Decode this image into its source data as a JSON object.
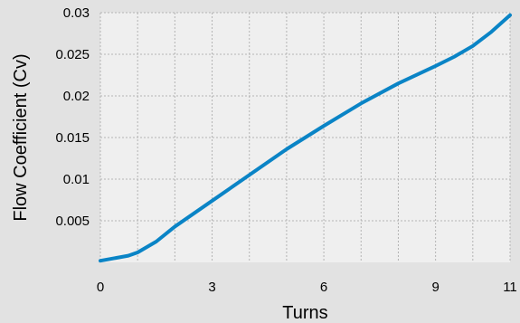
{
  "chart_data": {
    "type": "line",
    "title": "",
    "xlabel": "Turns",
    "ylabel": "Flow Coefficient (Cv)",
    "xlim": [
      0,
      11
    ],
    "ylim": [
      0,
      0.03
    ],
    "xticks": [
      0,
      3,
      6,
      9,
      11
    ],
    "xtick_labels": [
      "0",
      "3",
      "6",
      "9",
      "11"
    ],
    "yticks": [
      0.005,
      0.01,
      0.015,
      0.02,
      0.025,
      0.03
    ],
    "ytick_labels": [
      "0.005",
      "0.01",
      "0.015",
      "0.02",
      "0.025",
      "0.03"
    ],
    "grid": true,
    "legend": "none",
    "colors": {
      "line": "#0a84c6",
      "plot_background": "#efefef",
      "page_background": "#e2e2e2",
      "grid": "#b4b4b4"
    },
    "series": [
      {
        "x": [
          0,
          0.5,
          0.75,
          1,
          1.5,
          2,
          3,
          4,
          5,
          6,
          7,
          8,
          9,
          9.5,
          10,
          10.5,
          11
        ],
        "y": [
          0.0002,
          0.0006,
          0.0008,
          0.0012,
          0.0025,
          0.0043,
          0.0074,
          0.0105,
          0.0136,
          0.0164,
          0.0191,
          0.0215,
          0.0236,
          0.0247,
          0.026,
          0.0277,
          0.0297
        ]
      }
    ]
  }
}
